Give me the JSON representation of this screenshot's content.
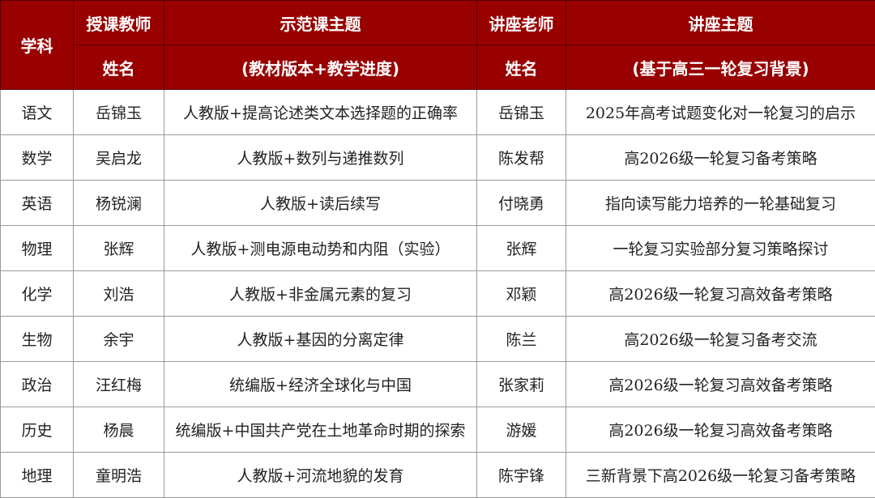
{
  "header": {
    "subject": "学科",
    "teacher_top": "授课教师",
    "teacher_bottom": "姓名",
    "demo_top": "示范课主题",
    "demo_bottom": "(教材版本+教学进度)",
    "lecturer_top": "讲座老师",
    "lecturer_bottom": "姓名",
    "lecture_top": "讲座主题",
    "lecture_bottom": "(基于高三一轮复习背景)"
  },
  "colors": {
    "header_bg": "#990000",
    "header_text": "#ffffff"
  },
  "rows": [
    {
      "subject": "语文",
      "teacher": "岳锦玉",
      "demo": "人教版+提高论述类文本选择题的正确率",
      "lecturer": "岳锦玉",
      "lecture": "2025年高考试题变化对一轮复习的启示"
    },
    {
      "subject": "数学",
      "teacher": "吴启龙",
      "demo": "人教版+数列与递推数列",
      "lecturer": "陈发帮",
      "lecture": "高2026级一轮复习备考策略"
    },
    {
      "subject": "英语",
      "teacher": "杨锐澜",
      "demo": "人教版+读后续写",
      "lecturer": "付晓勇",
      "lecture": "指向读写能力培养的一轮基础复习"
    },
    {
      "subject": "物理",
      "teacher": "张辉",
      "demo": "人教版+测电源电动势和内阻（实验）",
      "lecturer": "张辉",
      "lecture": "一轮复习实验部分复习策略探讨"
    },
    {
      "subject": "化学",
      "teacher": "刘浩",
      "demo": "人教版+非金属元素的复习",
      "lecturer": "邓颖",
      "lecture": "高2026级一轮复习高效备考策略"
    },
    {
      "subject": "生物",
      "teacher": "余宇",
      "demo": "人教版+基因的分离定律",
      "lecturer": "陈兰",
      "lecture": "高2026级一轮复习备考交流"
    },
    {
      "subject": "政治",
      "teacher": "汪红梅",
      "demo": "统编版+经济全球化与中国",
      "lecturer": "张家莉",
      "lecture": "高2026级一轮复习高效备考策略"
    },
    {
      "subject": "历史",
      "teacher": "杨晨",
      "demo": "统编版+中国共产党在土地革命时期的探索",
      "lecturer": "游媛",
      "lecture": "高2026级一轮复习高效备考策略"
    },
    {
      "subject": "地理",
      "teacher": "童明浩",
      "demo": "人教版+河流地貌的发育",
      "lecturer": "陈宇锋",
      "lecture": "三新背景下高2026级一轮复习备考策略"
    }
  ]
}
